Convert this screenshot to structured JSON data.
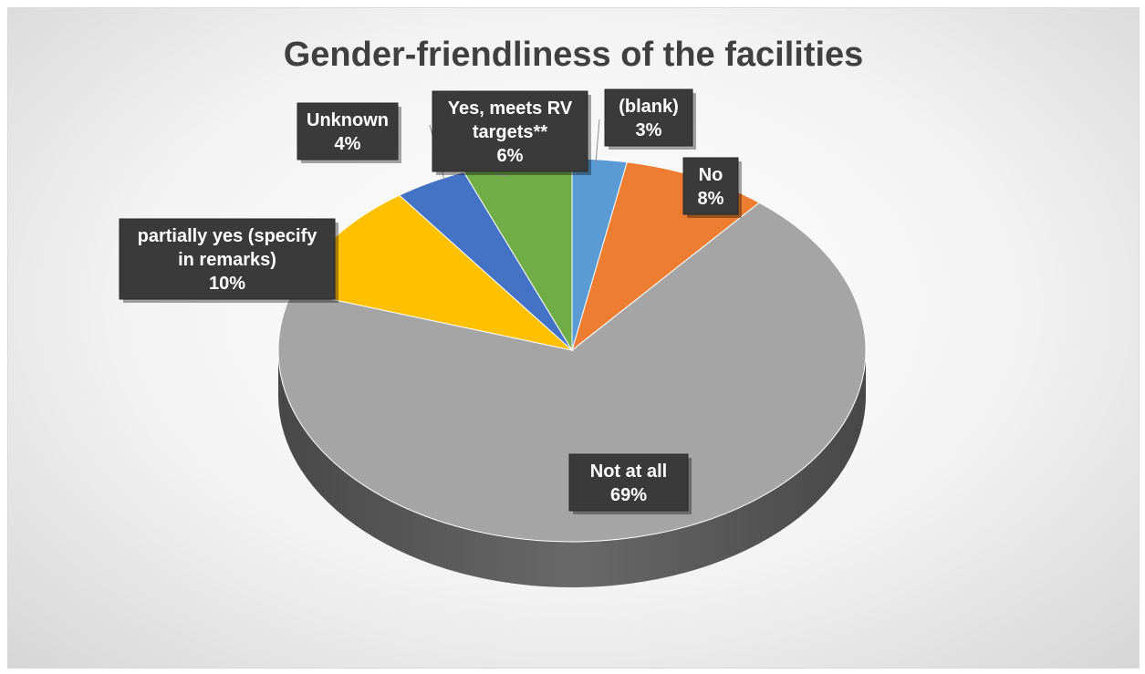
{
  "chart_data": {
    "type": "pie",
    "title": "Gender-friendliness of the facilities",
    "style": "3d",
    "series": [
      {
        "values": [
          3,
          8,
          69,
          10,
          4,
          6
        ],
        "categories": [
          "(blank)",
          "No",
          "Not at all",
          "partially yes (specify in remarks)",
          "Unknown",
          "Yes, meets RV targets**"
        ]
      }
    ],
    "slices": [
      {
        "label": "(blank)",
        "value": 3,
        "value_text": "3%",
        "color": "#5b9bd5",
        "dark": "#3c6f9f"
      },
      {
        "label": "No",
        "value": 8,
        "value_text": "8%",
        "color": "#ed7d31",
        "dark": "#b25a1f"
      },
      {
        "label": "Not at all",
        "value": 69,
        "value_text": "69%",
        "color": "#a5a5a5",
        "dark": "#6e6e6e"
      },
      {
        "label": "partially yes (specify in remarks)",
        "value": 10,
        "value_text": "10%",
        "color": "#ffc000",
        "dark": "#8a6400"
      },
      {
        "label": "Unknown",
        "value": 4,
        "value_text": "4%",
        "color": "#4472c4",
        "dark": "#2c4d88"
      },
      {
        "label": "Yes, meets RV targets**",
        "value": 6,
        "value_text": "6%",
        "color": "#70ad47",
        "dark": "#4b7a2e"
      }
    ],
    "legend": "none"
  }
}
